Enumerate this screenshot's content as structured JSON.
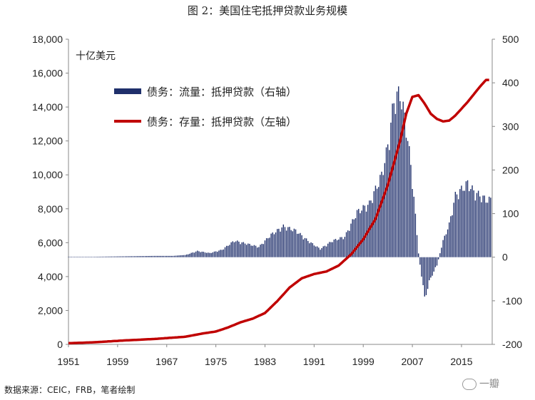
{
  "caption": "图 2：美国住宅抵押贷款业务规模",
  "source_note": "数据来源：CEIC，FRB，笔者绘制",
  "watermark": "一瓣",
  "chart_data": {
    "type": "bar+line",
    "title": "图 2：美国住宅抵押贷款业务规模",
    "unit_label": "十亿美元",
    "x_ticks": [
      "1951",
      "1959",
      "1967",
      "1975",
      "1983",
      "1991",
      "1999",
      "2007",
      "2015"
    ],
    "x_range": [
      1951,
      2020
    ],
    "left_axis": {
      "range": [
        0,
        18000
      ],
      "ticks": [
        "0",
        "2,000",
        "4,000",
        "6,000",
        "8,000",
        "10,000",
        "12,000",
        "14,000",
        "16,000",
        "18,000"
      ]
    },
    "right_axis": {
      "range": [
        -200,
        500
      ],
      "ticks": [
        "-200",
        "-100",
        "0",
        "100",
        "200",
        "300",
        "400",
        "500"
      ]
    },
    "legend": [
      {
        "label": "债务：流量：抵押贷款（右轴）",
        "color": "#1f2f6b",
        "kind": "bar"
      },
      {
        "label": "债务：存量：抵押贷款（左轴）",
        "color": "#c00000",
        "kind": "line"
      }
    ],
    "series": [
      {
        "name": "债务：存量：抵押贷款（左轴）",
        "axis": "left",
        "points": [
          [
            1951,
            70
          ],
          [
            1955,
            120
          ],
          [
            1960,
            230
          ],
          [
            1965,
            320
          ],
          [
            1970,
            450
          ],
          [
            1973,
            650
          ],
          [
            1975,
            760
          ],
          [
            1977,
            1000
          ],
          [
            1979,
            1300
          ],
          [
            1981,
            1520
          ],
          [
            1983,
            1850
          ],
          [
            1985,
            2550
          ],
          [
            1987,
            3350
          ],
          [
            1989,
            3900
          ],
          [
            1991,
            4150
          ],
          [
            1993,
            4300
          ],
          [
            1995,
            4650
          ],
          [
            1997,
            5300
          ],
          [
            1999,
            6200
          ],
          [
            2001,
            7400
          ],
          [
            2003,
            9400
          ],
          [
            2005,
            12000
          ],
          [
            2006,
            13600
          ],
          [
            2007,
            14600
          ],
          [
            2008,
            14700
          ],
          [
            2009,
            14200
          ],
          [
            2010,
            13600
          ],
          [
            2011,
            13300
          ],
          [
            2012,
            13150
          ],
          [
            2013,
            13200
          ],
          [
            2014,
            13500
          ],
          [
            2016,
            14300
          ],
          [
            2018,
            15200
          ],
          [
            2019,
            15600
          ]
        ]
      },
      {
        "name": "债务：流量：抵押贷款（右轴）",
        "axis": "right",
        "points": [
          [
            1951,
            1
          ],
          [
            1955,
            1
          ],
          [
            1960,
            2
          ],
          [
            1965,
            3
          ],
          [
            1968,
            3
          ],
          [
            1970,
            5
          ],
          [
            1972,
            15
          ],
          [
            1974,
            10
          ],
          [
            1976,
            18
          ],
          [
            1978,
            40
          ],
          [
            1980,
            33
          ],
          [
            1982,
            25
          ],
          [
            1984,
            55
          ],
          [
            1986,
            75
          ],
          [
            1988,
            65
          ],
          [
            1990,
            40
          ],
          [
            1992,
            20
          ],
          [
            1994,
            40
          ],
          [
            1996,
            50
          ],
          [
            1998,
            110
          ],
          [
            2000,
            130
          ],
          [
            2002,
            200
          ],
          [
            2003,
            270
          ],
          [
            2004,
            380
          ],
          [
            2005,
            400
          ],
          [
            2006,
            320
          ],
          [
            2007,
            190
          ],
          [
            2008,
            10
          ],
          [
            2009,
            -100
          ],
          [
            2010,
            -50
          ],
          [
            2011,
            -20
          ],
          [
            2012,
            40
          ],
          [
            2013,
            80
          ],
          [
            2014,
            150
          ],
          [
            2016,
            180
          ],
          [
            2017,
            160
          ],
          [
            2018,
            150
          ],
          [
            2019,
            140
          ]
        ]
      }
    ]
  }
}
